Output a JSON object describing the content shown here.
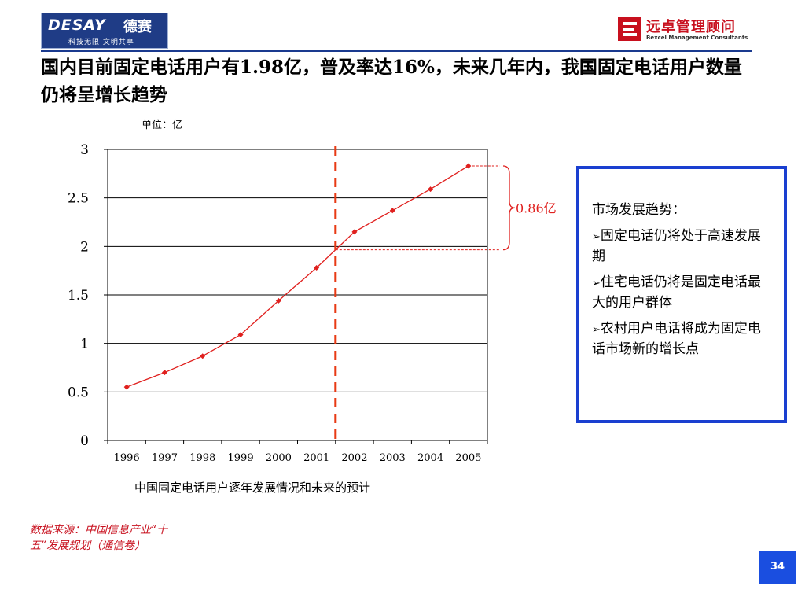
{
  "header": {
    "left_logo": {
      "brand": "DESAY",
      "brand_cn": "德赛",
      "slogan": "科技无限  文明共享"
    },
    "right_logo": {
      "name_cn": "远卓管理顾问",
      "name_en": "Bexcel Management Consultants"
    }
  },
  "title": "国内目前固定电话用户有1.98亿，普及率达16%，未来几年内，我国固定电话用户数量仍将呈增长趋势",
  "unit_label": "单位：亿",
  "caption": "中国固定电话用户逐年发展情况和未来的预计",
  "chart_data": {
    "type": "line",
    "categories": [
      "1996",
      "1997",
      "1998",
      "1999",
      "2000",
      "2001",
      "2002",
      "2003",
      "2004",
      "2005"
    ],
    "series": [
      {
        "values": [
          0.55,
          0.7,
          0.87,
          1.09,
          1.44,
          1.78,
          2.15,
          2.37,
          2.59,
          2.83
        ]
      }
    ],
    "ylim": [
      0,
      3
    ],
    "y_ticks": [
      "0",
      "0.5",
      "1",
      "1.5",
      "2",
      "2.5",
      "3"
    ],
    "grid": "horizontal",
    "line_color": "#e0201e",
    "divider_between": [
      "2001",
      "2002"
    ],
    "annotation": "0.86亿"
  },
  "info_box": {
    "heading": "市场发展趋势：",
    "items": [
      "固定电话仍将处于高速发展期",
      "住宅电话仍将是固定电话最大的用户群体",
      "农村用户电话将成为固定电话市场新的增长点"
    ]
  },
  "source": "数据来源：中国信息产业“十五”发展规划（通信卷）",
  "page_number": "34"
}
